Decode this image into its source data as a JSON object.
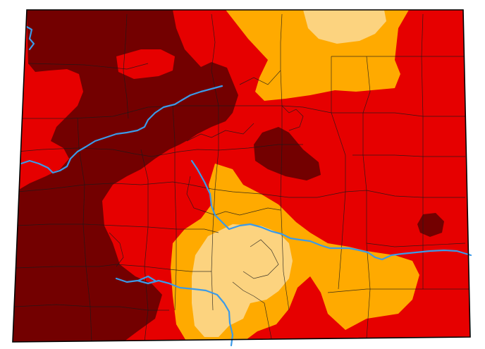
{
  "map": {
    "region": "Colorado",
    "category_colors": {
      "D1": "#fcd37f",
      "D2": "#ffaa00",
      "D3": "#e60000",
      "D4": "#730000"
    },
    "county_line_color": "#1a1a1a",
    "river_color": "#3b9ae8",
    "outline_color": "#000000"
  }
}
